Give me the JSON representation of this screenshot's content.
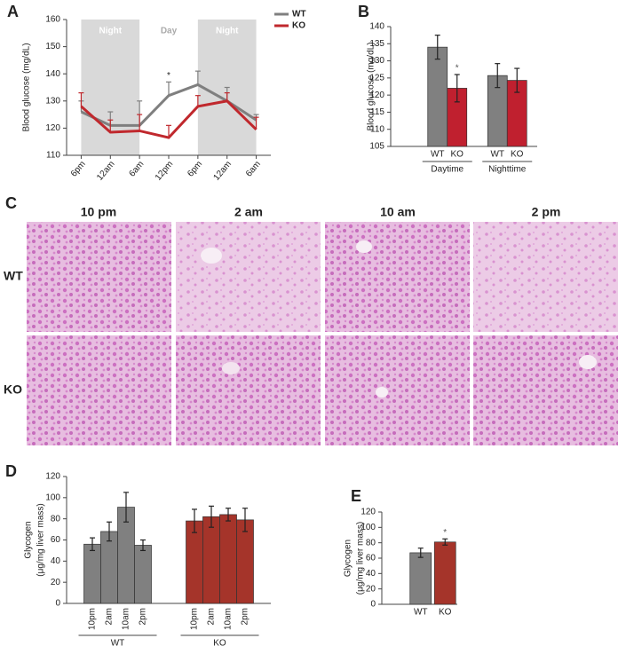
{
  "chart_data": [
    {
      "panel": "A",
      "type": "line",
      "y_label": "Blood glucose (mg/dL)",
      "categories": [
        "6pm",
        "12am",
        "6am",
        "12pm",
        "6pm",
        "12am",
        "6am"
      ],
      "series": [
        {
          "name": "WT",
          "color": "#7f7f7f",
          "values": [
            126,
            121,
            121,
            132,
            136,
            130,
            123
          ],
          "errors": [
            4,
            5,
            9,
            5,
            5,
            5,
            2
          ]
        },
        {
          "name": "KO",
          "color": "#c0282d",
          "values": [
            128,
            118.5,
            119,
            116.5,
            128,
            130,
            119.5
          ],
          "errors": [
            5,
            4.5,
            6,
            4.5,
            4,
            3,
            4.5
          ]
        }
      ],
      "bands": [
        {
          "label": "Night",
          "start": 0,
          "end": 2,
          "shaded": true
        },
        {
          "label": "Day",
          "start": 2,
          "end": 4,
          "shaded": false
        },
        {
          "label": "Night",
          "start": 4,
          "end": 6,
          "shaded": true
        }
      ],
      "annotations": [
        {
          "text": "*",
          "series": 0,
          "index": 3
        }
      ],
      "ylim": [
        110,
        160
      ],
      "yticks": [
        110,
        120,
        130,
        140,
        150,
        160
      ],
      "legend": "top-right"
    },
    {
      "panel": "B",
      "type": "bar",
      "group_by": "category",
      "y_label": "Blood glucose (mg/dL)",
      "categories": [
        "Daytime",
        "Nighttime"
      ],
      "series": [
        {
          "name": "WT",
          "color": "#808080",
          "values": [
            134,
            125.7
          ],
          "errors": [
            3.5,
            3.5
          ]
        },
        {
          "name": "KO",
          "color": "#c0202f",
          "values": [
            122,
            124.3
          ],
          "errors": [
            4,
            3.5
          ]
        }
      ],
      "annotations": [
        {
          "text": "*",
          "series": 1,
          "index": 0
        }
      ],
      "ylim": [
        105,
        140
      ],
      "yticks": [
        105,
        110,
        115,
        120,
        125,
        130,
        135,
        140
      ]
    },
    {
      "panel": "D",
      "type": "bar",
      "group_by": "series",
      "y_label": [
        "Glycogen",
        "(μg/mg liver mass)"
      ],
      "categories": [
        "10pm",
        "2am",
        "10am",
        "2pm"
      ],
      "series": [
        {
          "name": "WT",
          "color": "#808080",
          "values": [
            56,
            68,
            91,
            55
          ],
          "errors": [
            6,
            9,
            14,
            5
          ]
        },
        {
          "name": "KO",
          "color": "#a5342a",
          "values": [
            78,
            82,
            84,
            79
          ],
          "errors": [
            11,
            10,
            6,
            11
          ]
        }
      ],
      "ylim": [
        0,
        120
      ],
      "yticks": [
        0,
        20,
        40,
        60,
        80,
        100,
        120
      ]
    },
    {
      "panel": "E",
      "type": "bar",
      "group_by": "none",
      "y_label": [
        "Glycogen",
        "(μg/mg liver mass)"
      ],
      "categories": [
        "WT",
        "KO"
      ],
      "values": [
        67,
        81
      ],
      "errors": [
        6,
        4
      ],
      "colors": [
        "#808080",
        "#a5342a"
      ],
      "annotations": [
        {
          "text": "*",
          "index": 1
        }
      ],
      "ylim": [
        0,
        120
      ],
      "yticks": [
        0,
        20,
        40,
        60,
        80,
        100,
        120
      ]
    }
  ],
  "micrographs": {
    "panel": "C",
    "columns": [
      "10 pm",
      "2 am",
      "10 am",
      "2 pm"
    ],
    "rows": [
      "WT",
      "KO"
    ]
  }
}
